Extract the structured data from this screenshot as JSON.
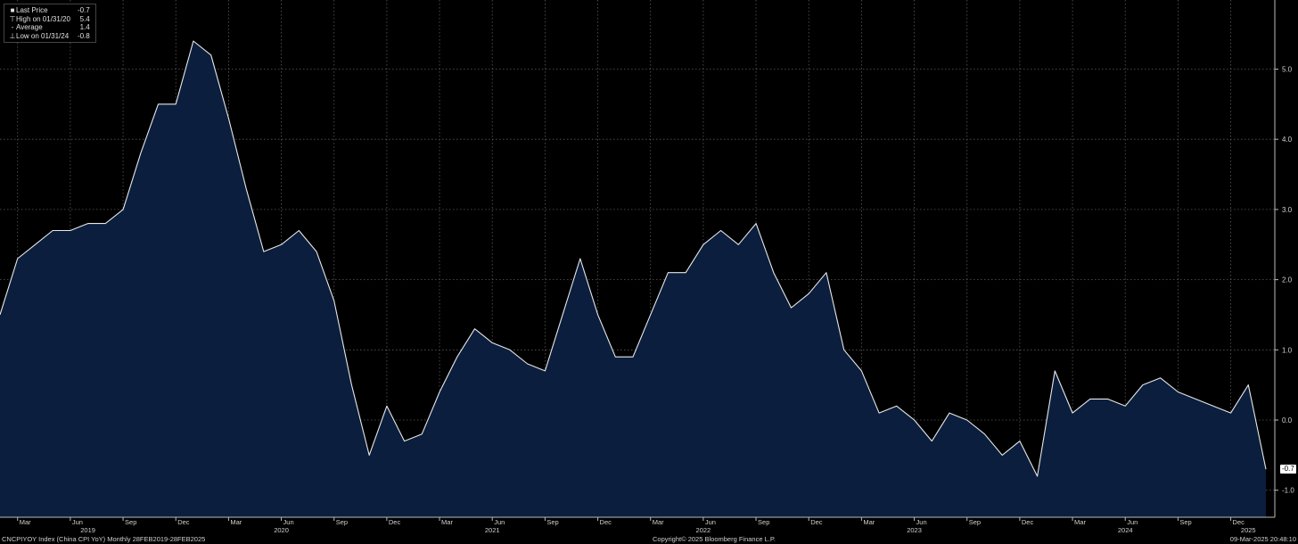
{
  "legend": {
    "items": [
      {
        "symbol": "■",
        "label": "Last Price",
        "value": "-0.7"
      },
      {
        "symbol": "⊤",
        "label": "High on 01/31/20",
        "value": "5.4"
      },
      {
        "symbol": "-",
        "label": "Average",
        "value": "1.4"
      },
      {
        "symbol": "⊥",
        "label": "Low on 01/31/24",
        "value": "-0.8"
      }
    ]
  },
  "footer": {
    "left": "CNCPIYOY Index (China CPI YoY)  Monthly 28FEB2019-28FEB2025",
    "center": "Copyright© 2025 Bloomberg Finance L.P.",
    "right": "09-Mar-2025 20:48:10"
  },
  "last_price_badge": "-0.7",
  "colors": {
    "background": "#000000",
    "area_fill": "#0b1e3d",
    "line": "#e8e8e8",
    "grid": "#5a5a5a"
  },
  "chart_data": {
    "type": "area",
    "title": "",
    "xlabel": "",
    "ylabel": "",
    "ylim": [
      -1.4,
      5.9
    ],
    "yticks": [
      -1.0,
      0.0,
      1.0,
      2.0,
      3.0,
      4.0,
      5.0
    ],
    "ytick_labels": [
      "-1.0",
      "0.0",
      "1.0",
      "2.0",
      "3.0",
      "4.0",
      "5.0"
    ],
    "grid": true,
    "legend_position": "top-left",
    "month_tick_labels": [
      {
        "label": "Mar",
        "date": "2019-03"
      },
      {
        "label": "Jun",
        "date": "2019-06"
      },
      {
        "label": "Sep",
        "date": "2019-09"
      },
      {
        "label": "Dec",
        "date": "2019-12"
      },
      {
        "label": "Mar",
        "date": "2020-03"
      },
      {
        "label": "Jun",
        "date": "2020-06"
      },
      {
        "label": "Sep",
        "date": "2020-09"
      },
      {
        "label": "Dec",
        "date": "2020-12"
      },
      {
        "label": "Mar",
        "date": "2021-03"
      },
      {
        "label": "Jun",
        "date": "2021-06"
      },
      {
        "label": "Sep",
        "date": "2021-09"
      },
      {
        "label": "Dec",
        "date": "2021-12"
      },
      {
        "label": "Mar",
        "date": "2022-03"
      },
      {
        "label": "Jun",
        "date": "2022-06"
      },
      {
        "label": "Sep",
        "date": "2022-09"
      },
      {
        "label": "Dec",
        "date": "2022-12"
      },
      {
        "label": "Mar",
        "date": "2023-03"
      },
      {
        "label": "Jun",
        "date": "2023-06"
      },
      {
        "label": "Sep",
        "date": "2023-09"
      },
      {
        "label": "Dec",
        "date": "2023-12"
      },
      {
        "label": "Mar",
        "date": "2024-03"
      },
      {
        "label": "Jun",
        "date": "2024-06"
      },
      {
        "label": "Sep",
        "date": "2024-09"
      },
      {
        "label": "Dec",
        "date": "2024-12"
      }
    ],
    "year_tick_labels": [
      {
        "label": "2019",
        "date": "2019-07"
      },
      {
        "label": "2020",
        "date": "2020-06"
      },
      {
        "label": "2021",
        "date": "2021-06"
      },
      {
        "label": "2022",
        "date": "2022-06"
      },
      {
        "label": "2023",
        "date": "2023-06"
      },
      {
        "label": "2024",
        "date": "2024-06"
      },
      {
        "label": "2025",
        "date": "2025-01"
      }
    ],
    "series": [
      {
        "name": "CNCPIYOY Index (China CPI YoY)",
        "x": [
          "2019-02",
          "2019-03",
          "2019-04",
          "2019-05",
          "2019-06",
          "2019-07",
          "2019-08",
          "2019-09",
          "2019-10",
          "2019-11",
          "2019-12",
          "2020-01",
          "2020-02",
          "2020-03",
          "2020-04",
          "2020-05",
          "2020-06",
          "2020-07",
          "2020-08",
          "2020-09",
          "2020-10",
          "2020-11",
          "2020-12",
          "2021-01",
          "2021-02",
          "2021-03",
          "2021-04",
          "2021-05",
          "2021-06",
          "2021-07",
          "2021-08",
          "2021-09",
          "2021-10",
          "2021-11",
          "2021-12",
          "2022-01",
          "2022-02",
          "2022-03",
          "2022-04",
          "2022-05",
          "2022-06",
          "2022-07",
          "2022-08",
          "2022-09",
          "2022-10",
          "2022-11",
          "2022-12",
          "2023-01",
          "2023-02",
          "2023-03",
          "2023-04",
          "2023-05",
          "2023-06",
          "2023-07",
          "2023-08",
          "2023-09",
          "2023-10",
          "2023-11",
          "2023-12",
          "2024-01",
          "2024-02",
          "2024-03",
          "2024-04",
          "2024-05",
          "2024-06",
          "2024-07",
          "2024-08",
          "2024-09",
          "2024-10",
          "2024-11",
          "2024-12",
          "2025-01",
          "2025-02"
        ],
        "values": [
          1.5,
          2.3,
          2.5,
          2.7,
          2.7,
          2.8,
          2.8,
          3.0,
          3.8,
          4.5,
          4.5,
          5.4,
          5.2,
          4.3,
          3.3,
          2.4,
          2.5,
          2.7,
          2.4,
          1.7,
          0.5,
          -0.5,
          0.2,
          -0.3,
          -0.2,
          0.4,
          0.9,
          1.3,
          1.1,
          1.0,
          0.8,
          0.7,
          1.5,
          2.3,
          1.5,
          0.9,
          0.9,
          1.5,
          2.1,
          2.1,
          2.5,
          2.7,
          2.5,
          2.8,
          2.1,
          1.6,
          1.8,
          2.1,
          1.0,
          0.7,
          0.1,
          0.2,
          0.0,
          -0.3,
          0.1,
          0.0,
          -0.2,
          -0.5,
          -0.3,
          -0.8,
          0.7,
          0.1,
          0.3,
          0.3,
          0.2,
          0.5,
          0.6,
          0.4,
          0.3,
          0.2,
          0.1,
          0.5,
          -0.7
        ]
      }
    ]
  }
}
